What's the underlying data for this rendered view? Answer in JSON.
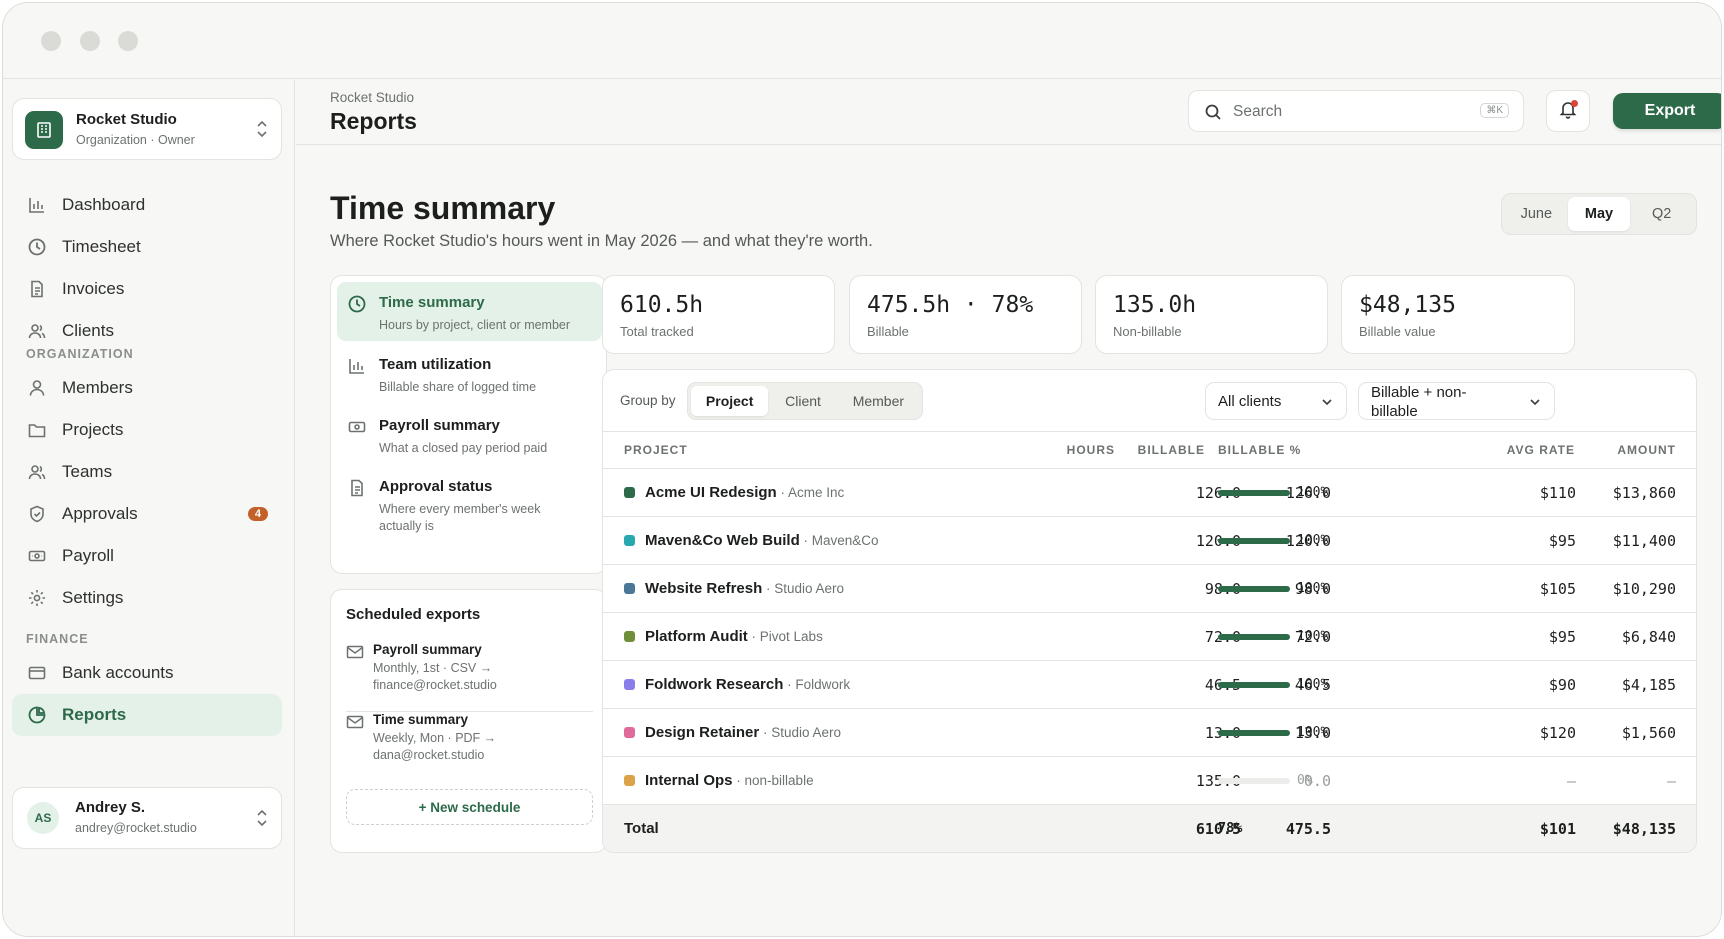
{
  "org": {
    "name": "Rocket Studio",
    "sub": "Organization · Owner"
  },
  "nav": {
    "items": [
      {
        "label": "Dashboard",
        "icon": "bar-chart-icon"
      },
      {
        "label": "Timesheet",
        "icon": "clock-icon"
      },
      {
        "label": "Invoices",
        "icon": "document-icon"
      },
      {
        "label": "Clients",
        "icon": "users-icon"
      }
    ],
    "section_org": "ORGANIZATION",
    "org_items": [
      {
        "label": "Members",
        "icon": "user-icon"
      },
      {
        "label": "Projects",
        "icon": "folder-icon"
      },
      {
        "label": "Teams",
        "icon": "users-icon"
      },
      {
        "label": "Approvals",
        "icon": "shield-icon",
        "badge": "4"
      },
      {
        "label": "Payroll",
        "icon": "banknote-icon"
      },
      {
        "label": "Settings",
        "icon": "gear-icon"
      }
    ],
    "section_finance": "FINANCE",
    "finance_items": [
      {
        "label": "Bank accounts",
        "icon": "card-icon"
      },
      {
        "label": "Reports",
        "icon": "pie-chart-icon",
        "active": true
      }
    ]
  },
  "user": {
    "initials": "AS",
    "name": "Andrey S.",
    "email": "andrey@rocket.studio"
  },
  "header": {
    "breadcrumb": "Rocket Studio",
    "title": "Reports",
    "search_placeholder": "Search",
    "search_shortcut": "⌘K",
    "export_label": "Export"
  },
  "page": {
    "title": "Time summary",
    "subtitle": "Where Rocket Studio's hours went in May 2026 — and what they're worth.",
    "periods": [
      "June",
      "May",
      "Q2"
    ],
    "active_period": "May"
  },
  "reports": [
    {
      "title": "Time summary",
      "desc": "Hours by project, client or member",
      "active": true
    },
    {
      "title": "Team utilization",
      "desc": "Billable share of logged time"
    },
    {
      "title": "Payroll summary",
      "desc": "What a closed pay period paid"
    },
    {
      "title": "Approval status",
      "desc": "Where every member's week actually is"
    }
  ],
  "scheduled": {
    "title": "Scheduled exports",
    "items": [
      {
        "name": "Payroll summary",
        "line1": "Monthly, 1st · CSV →",
        "line2": "finance@rocket.studio"
      },
      {
        "name": "Time summary",
        "line1": "Weekly, Mon · PDF →",
        "line2": "dana@rocket.studio"
      }
    ],
    "new_label": "+ New schedule"
  },
  "stats": [
    {
      "value": "610.5h",
      "label": "Total tracked"
    },
    {
      "value": "475.5h · 78%",
      "label": "Billable"
    },
    {
      "value": "135.0h",
      "label": "Non-billable"
    },
    {
      "value": "$48,135",
      "label": "Billable value"
    }
  ],
  "table": {
    "group_by_label": "Group by",
    "group_by_options": [
      "Project",
      "Client",
      "Member"
    ],
    "group_by_active": "Project",
    "client_filter": "All clients",
    "billable_filter_line1": "Billable + non-",
    "billable_filter_line2": "billable",
    "columns": [
      "PROJECT",
      "HOURS",
      "BILLABLE",
      "BILLABLE %",
      "AVG RATE",
      "AMOUNT"
    ],
    "rows": [
      {
        "project": "Acme UI Redesign",
        "client": " · Acme Inc",
        "color": "#2d6a4a",
        "hours": "126.0",
        "billable": "126.0",
        "pct": 1.0,
        "pct_label": "100%",
        "rate": "$110",
        "amount": "$13,860"
      },
      {
        "project": "Maven&Co Web Build",
        "client": " · Maven&Co",
        "color": "#2aa8b0",
        "hours": "120.0",
        "billable": "120.0",
        "pct": 1.0,
        "pct_label": "100%",
        "rate": "$95",
        "amount": "$11,400"
      },
      {
        "project": "Website Refresh",
        "client": " · Studio Aero",
        "color": "#4a7896",
        "hours": "98.0",
        "billable": "98.0",
        "pct": 1.0,
        "pct_label": "100%",
        "rate": "$105",
        "amount": "$10,290"
      },
      {
        "project": "Platform Audit",
        "client": " · Pivot Labs",
        "color": "#6f8f3a",
        "hours": "72.0",
        "billable": "72.0",
        "pct": 1.0,
        "pct_label": "100%",
        "rate": "$95",
        "amount": "$6,840"
      },
      {
        "project": "Foldwork Research",
        "client": " · Foldwork",
        "color": "#8a7ee8",
        "hours": "46.5",
        "billable": "46.5",
        "pct": 1.0,
        "pct_label": "100%",
        "rate": "$90",
        "amount": "$4,185"
      },
      {
        "project": "Design Retainer",
        "client": " · Studio Aero",
        "color": "#e06a9a",
        "hours": "13.0",
        "billable": "13.0",
        "pct": 1.0,
        "pct_label": "100%",
        "rate": "$120",
        "amount": "$1,560"
      },
      {
        "project": "Internal Ops",
        "client": " · non-billable",
        "color": "#dba24a",
        "hours": "135.0",
        "billable": "0.0",
        "pct": 0.0,
        "pct_label": "0%",
        "rate": "—",
        "amount": "—",
        "dim": true
      }
    ],
    "total": {
      "label": "Total",
      "hours": "610.5",
      "billable": "475.5",
      "pct_label": "78%",
      "rate": "$101",
      "amount": "$48,135"
    }
  }
}
